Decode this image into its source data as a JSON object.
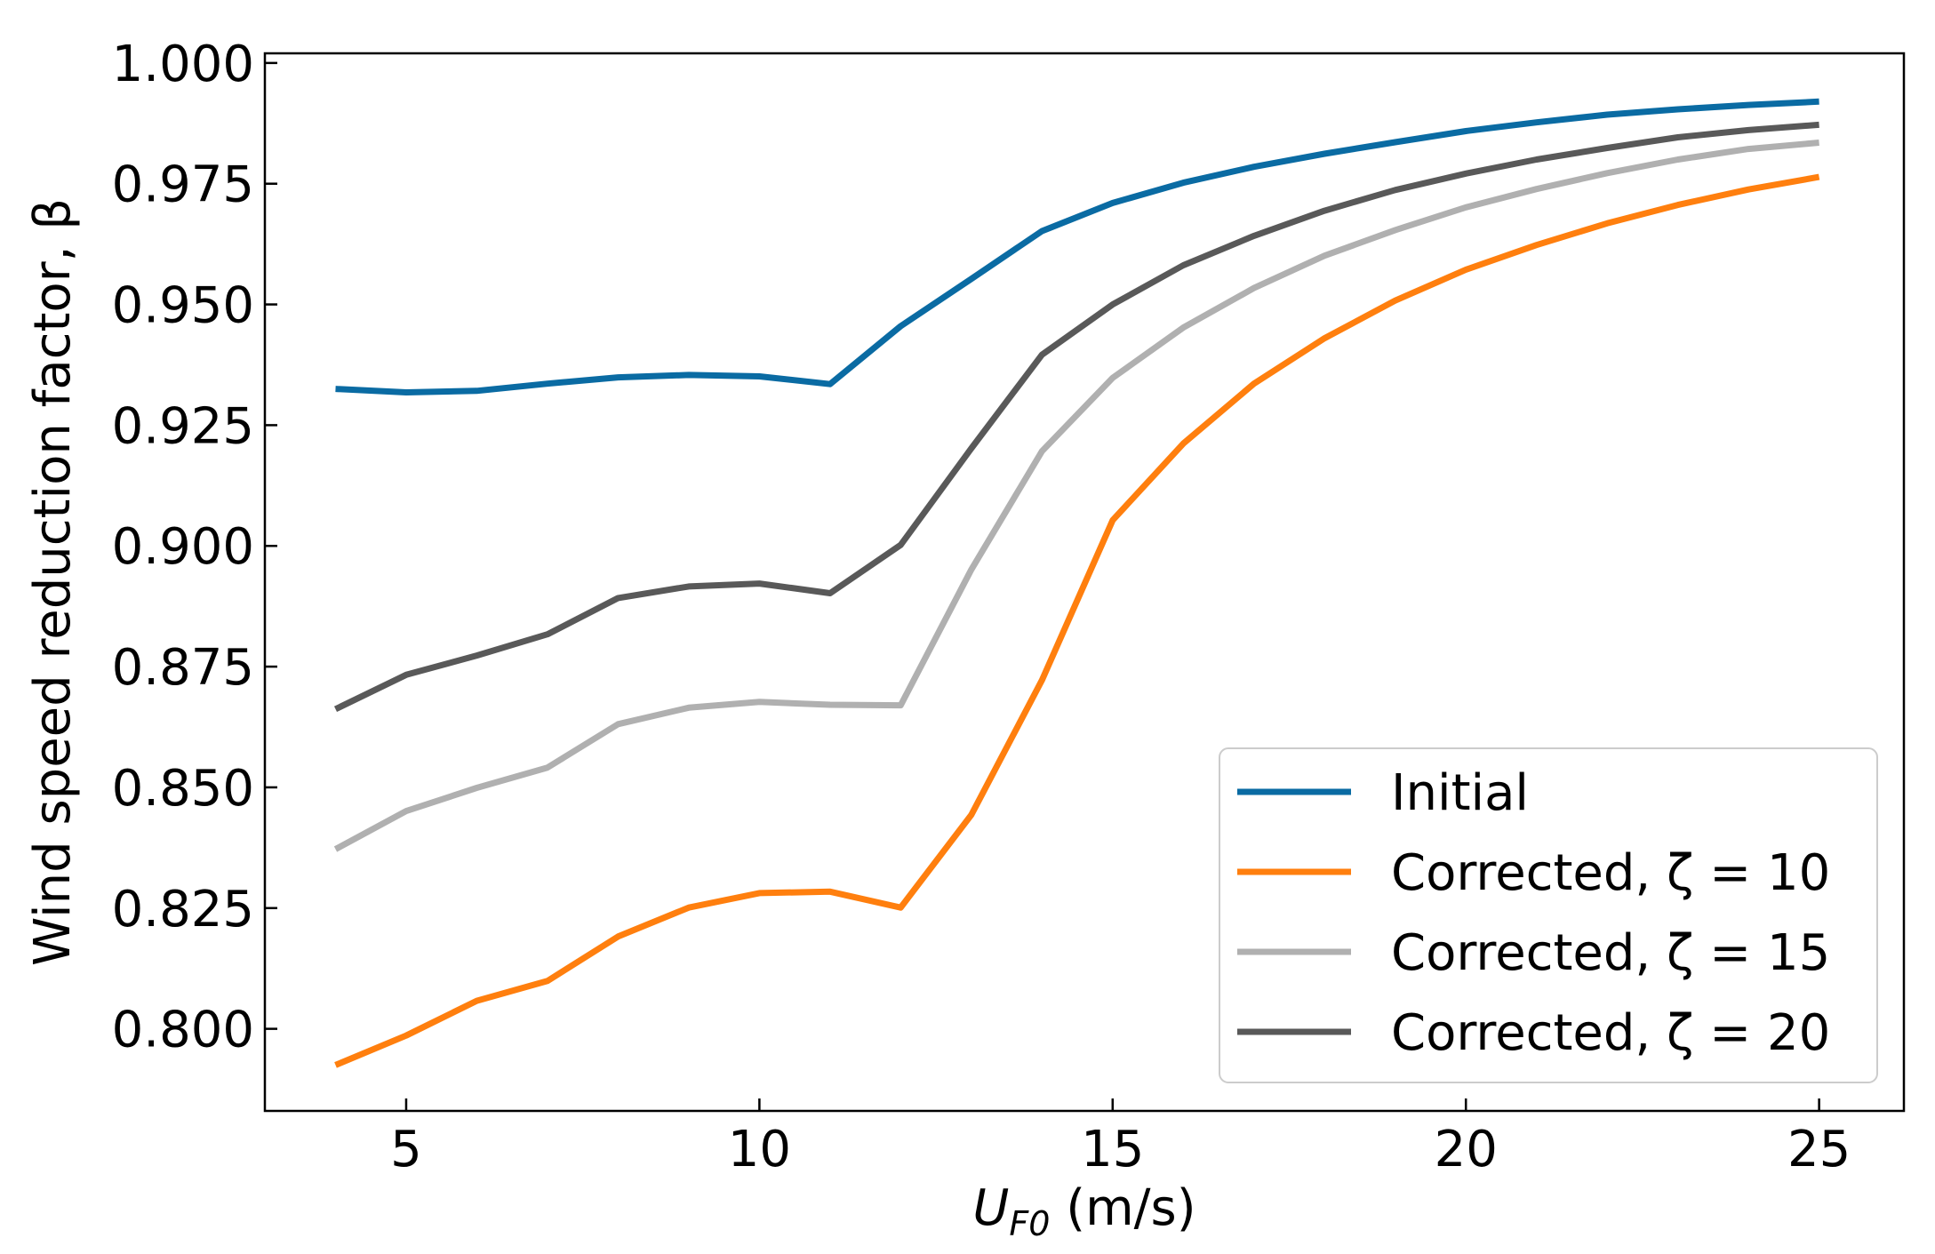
{
  "chart_data": {
    "type": "line",
    "title": "",
    "xlabel": "U_F0 (m/s)",
    "xlabel_parts": {
      "symbol": "U",
      "subscript": "F0",
      "unit": " (m/s)"
    },
    "ylabel": "Wind speed reduction factor, β",
    "xlim": [
      3,
      26.2
    ],
    "ylim": [
      0.783,
      1.002
    ],
    "xticks": [
      5,
      10,
      15,
      20,
      25
    ],
    "xtick_labels": [
      "5",
      "10",
      "15",
      "20",
      "25"
    ],
    "yticks": [
      0.8,
      0.825,
      0.85,
      0.875,
      0.9,
      0.925,
      0.95,
      0.975,
      1.0
    ],
    "ytick_labels": [
      "0.800",
      "0.825",
      "0.850",
      "0.875",
      "0.900",
      "0.925",
      "0.950",
      "0.975",
      "1.000"
    ],
    "grid": false,
    "legend_position": "bottom-right",
    "x": [
      4,
      5,
      6,
      7,
      8,
      9,
      10,
      11,
      12,
      13,
      14,
      15,
      16,
      17,
      18,
      19,
      20,
      21,
      22,
      23,
      24,
      25
    ],
    "series": [
      {
        "name": "Initial",
        "legend_label": "Initial",
        "color": "#0a6ba3",
        "values": [
          0.9325,
          0.9318,
          0.9321,
          0.9336,
          0.9349,
          0.9354,
          0.9351,
          0.9335,
          0.9455,
          0.9553,
          0.9652,
          0.971,
          0.9752,
          0.9785,
          0.9812,
          0.9836,
          0.9859,
          0.9877,
          0.9893,
          0.9904,
          0.9913,
          0.992
        ]
      },
      {
        "name": "Corrected, ζ = 10",
        "legend_label": "Corrected, ζ = 10",
        "color": "#ff7f0e",
        "values": [
          0.7925,
          0.7986,
          0.8058,
          0.8099,
          0.8191,
          0.8251,
          0.8281,
          0.8284,
          0.8251,
          0.8443,
          0.8722,
          0.9053,
          0.9212,
          0.9336,
          0.943,
          0.9508,
          0.9572,
          0.9623,
          0.9668,
          0.9706,
          0.9738,
          0.9764
        ]
      },
      {
        "name": "Corrected, ζ = 15",
        "legend_label": "Corrected, ζ = 15",
        "color": "#b0b0b0",
        "values": [
          0.8372,
          0.8451,
          0.8499,
          0.8541,
          0.8631,
          0.8665,
          0.8677,
          0.8671,
          0.867,
          0.8951,
          0.9196,
          0.9348,
          0.9452,
          0.9534,
          0.9601,
          0.9654,
          0.9701,
          0.9739,
          0.9772,
          0.98,
          0.9822,
          0.9835
        ]
      },
      {
        "name": "Corrected, ζ = 20",
        "legend_label": "Corrected, ζ = 20",
        "color": "#595959",
        "values": [
          0.8662,
          0.8733,
          0.8773,
          0.8817,
          0.8892,
          0.8916,
          0.8922,
          0.8902,
          0.9002,
          0.9202,
          0.9396,
          0.95,
          0.9581,
          0.9642,
          0.9694,
          0.9737,
          0.9771,
          0.98,
          0.9824,
          0.9846,
          0.9861,
          0.9872
        ]
      }
    ]
  }
}
